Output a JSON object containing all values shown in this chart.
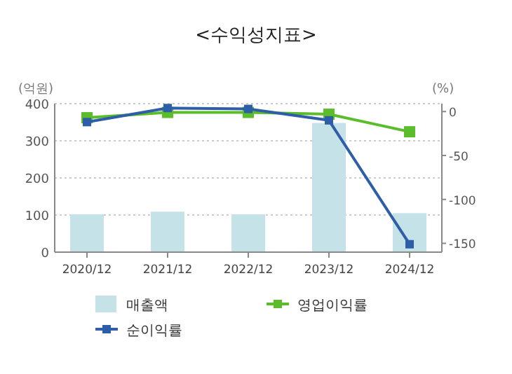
{
  "chart_data": {
    "type": "bar",
    "title": "<수익성지표>",
    "ylabel": "(억원)",
    "y2label": "(%)",
    "categories": [
      "2020/12",
      "2021/12",
      "2022/12",
      "2023/12",
      "2024/12"
    ],
    "series": [
      {
        "name": "매출액",
        "color": "#c5e2e8",
        "values": [
          102,
          109,
          102,
          348,
          105
        ]
      },
      {
        "name": "영업이익률",
        "type": "line",
        "axis": "y2",
        "color": "#5bbd2b",
        "values": [
          -7,
          -1,
          -1,
          -3,
          -23
        ]
      },
      {
        "name": "순이익률",
        "type": "line",
        "axis": "y2",
        "color": "#2e5ea8",
        "values": [
          -12,
          4,
          3,
          -10,
          -151
        ]
      }
    ],
    "ylim": [
      0,
      400
    ],
    "yticks": [
      0,
      100,
      200,
      300,
      400
    ],
    "y2lim": [
      -160,
      9
    ],
    "y2ticks": [
      0,
      -50,
      -100,
      -150
    ],
    "grid": "y",
    "legend": "bottom",
    "marker": "square"
  }
}
